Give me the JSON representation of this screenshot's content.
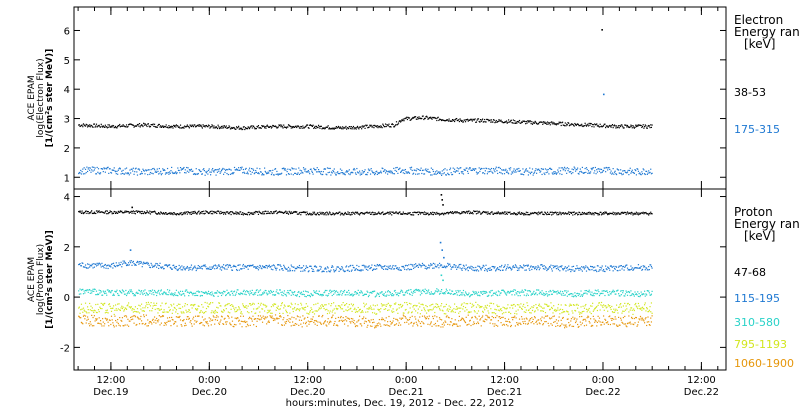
{
  "x_axis": {
    "title": "hours:minutes, Dec. 19, 2012 - Dec. 22, 2012",
    "ticks": [
      {
        "t": 12,
        "top": "12:00",
        "bottom": "Dec.19"
      },
      {
        "t": 24,
        "top": "0:00",
        "bottom": "Dec.20"
      },
      {
        "t": 36,
        "top": "12:00",
        "bottom": "Dec.20"
      },
      {
        "t": 48,
        "top": "0:00",
        "bottom": "Dec.21"
      },
      {
        "t": 60,
        "top": "12:00",
        "bottom": "Dec.21"
      },
      {
        "t": 72,
        "top": "0:00",
        "bottom": "Dec.22"
      },
      {
        "t": 84,
        "top": "12:00",
        "bottom": "Dec.22"
      }
    ],
    "unit": "hours since 2012-12-19 00:00",
    "xlim": [
      7.5,
      87
    ]
  },
  "chart_data": [
    {
      "type": "scatter",
      "ylabel": [
        "ACE EPAM",
        "log(Electron Flux)",
        "[1/(cm²s ster MeV)]"
      ],
      "ylim": [
        0.6,
        6.8
      ],
      "yticks": [
        1,
        2,
        3,
        4,
        5,
        6
      ],
      "legend_title": [
        "Electron",
        "Energy ran",
        "[keV]"
      ],
      "series": [
        {
          "name": "38-53",
          "color": "#000000",
          "points": [
            [
              8,
              2.8
            ],
            [
              12,
              2.75
            ],
            [
              16,
              2.8
            ],
            [
              20,
              2.75
            ],
            [
              24,
              2.75
            ],
            [
              28,
              2.7
            ],
            [
              32,
              2.75
            ],
            [
              36,
              2.75
            ],
            [
              40,
              2.7
            ],
            [
              44,
              2.75
            ],
            [
              46.5,
              2.8
            ],
            [
              47.5,
              3.0
            ],
            [
              50,
              3.05
            ],
            [
              52,
              3.0
            ],
            [
              55,
              2.95
            ],
            [
              58,
              2.95
            ],
            [
              62,
              2.9
            ],
            [
              66,
              2.85
            ],
            [
              70,
              2.8
            ],
            [
              74,
              2.75
            ],
            [
              78,
              2.75
            ]
          ],
          "outliers": [
            [
              71.8,
              6.05
            ]
          ]
        },
        {
          "name": "175-315",
          "color": "#1e78d2",
          "points": [
            [
              8,
              1.25
            ],
            [
              12,
              1.25
            ],
            [
              16,
              1.2
            ],
            [
              20,
              1.25
            ],
            [
              24,
              1.2
            ],
            [
              28,
              1.25
            ],
            [
              32,
              1.2
            ],
            [
              36,
              1.25
            ],
            [
              40,
              1.2
            ],
            [
              44,
              1.2
            ],
            [
              48,
              1.25
            ],
            [
              52,
              1.2
            ],
            [
              56,
              1.25
            ],
            [
              60,
              1.25
            ],
            [
              64,
              1.2
            ],
            [
              68,
              1.25
            ],
            [
              72,
              1.25
            ],
            [
              76,
              1.2
            ],
            [
              78,
              1.25
            ]
          ],
          "outliers": [
            [
              72,
              3.85
            ]
          ]
        }
      ]
    },
    {
      "type": "scatter",
      "ylabel": [
        "ACE EPAM",
        "log(Proton Flux)",
        "[1/(cm²s ster MeV)]"
      ],
      "ylim": [
        -2.9,
        4.3
      ],
      "yticks": [
        -2,
        0,
        2,
        4
      ],
      "legend_title": [
        "Proton",
        "Energy ran",
        "[keV]"
      ],
      "series": [
        {
          "name": "47-68",
          "color": "#000000",
          "points": [
            [
              8,
              3.4
            ],
            [
              12,
              3.4
            ],
            [
              16,
              3.4
            ],
            [
              20,
              3.35
            ],
            [
              24,
              3.4
            ],
            [
              28,
              3.35
            ],
            [
              32,
              3.4
            ],
            [
              36,
              3.35
            ],
            [
              40,
              3.35
            ],
            [
              44,
              3.35
            ],
            [
              48,
              3.35
            ],
            [
              52,
              3.35
            ],
            [
              56,
              3.4
            ],
            [
              60,
              3.35
            ],
            [
              64,
              3.35
            ],
            [
              68,
              3.35
            ],
            [
              72,
              3.35
            ],
            [
              76,
              3.35
            ],
            [
              78,
              3.35
            ]
          ],
          "outliers": [
            [
              52.2,
              4.1
            ],
            [
              52.3,
              3.9
            ],
            [
              52.4,
              3.7
            ],
            [
              14.5,
              3.6
            ]
          ]
        },
        {
          "name": "115-195",
          "color": "#1e78d2",
          "points": [
            [
              8,
              1.3
            ],
            [
              12,
              1.25
            ],
            [
              14,
              1.4
            ],
            [
              16,
              1.3
            ],
            [
              20,
              1.2
            ],
            [
              24,
              1.2
            ],
            [
              28,
              1.2
            ],
            [
              32,
              1.2
            ],
            [
              36,
              1.15
            ],
            [
              40,
              1.15
            ],
            [
              44,
              1.2
            ],
            [
              48,
              1.2
            ],
            [
              52,
              1.3
            ],
            [
              56,
              1.15
            ],
            [
              60,
              1.2
            ],
            [
              64,
              1.2
            ],
            [
              68,
              1.15
            ],
            [
              72,
              1.15
            ],
            [
              76,
              1.2
            ],
            [
              78,
              1.2
            ]
          ],
          "outliers": [
            [
              52.1,
              2.2
            ],
            [
              52.3,
              1.9
            ],
            [
              14.3,
              1.9
            ],
            [
              52.5,
              1.6
            ]
          ]
        },
        {
          "name": "310-580",
          "color": "#28d2c8",
          "points": [
            [
              8,
              0.25
            ],
            [
              12,
              0.2
            ],
            [
              16,
              0.2
            ],
            [
              20,
              0.2
            ],
            [
              24,
              0.15
            ],
            [
              28,
              0.2
            ],
            [
              32,
              0.2
            ],
            [
              36,
              0.15
            ],
            [
              40,
              0.2
            ],
            [
              44,
              0.15
            ],
            [
              48,
              0.2
            ],
            [
              52,
              0.25
            ],
            [
              56,
              0.15
            ],
            [
              60,
              0.2
            ],
            [
              64,
              0.2
            ],
            [
              68,
              0.15
            ],
            [
              72,
              0.2
            ],
            [
              76,
              0.15
            ],
            [
              78,
              0.2
            ]
          ],
          "outliers": [
            [
              52.2,
              0.9
            ],
            [
              52.4,
              0.7
            ]
          ]
        },
        {
          "name": "795-1193",
          "color": "#d2e61e",
          "points": [
            [
              8,
              -0.4
            ],
            [
              12,
              -0.45
            ],
            [
              16,
              -0.4
            ],
            [
              20,
              -0.45
            ],
            [
              24,
              -0.4
            ],
            [
              28,
              -0.45
            ],
            [
              32,
              -0.4
            ],
            [
              36,
              -0.45
            ],
            [
              40,
              -0.4
            ],
            [
              44,
              -0.45
            ],
            [
              48,
              -0.4
            ],
            [
              52,
              -0.45
            ],
            [
              56,
              -0.4
            ],
            [
              60,
              -0.45
            ],
            [
              64,
              -0.4
            ],
            [
              68,
              -0.45
            ],
            [
              72,
              -0.4
            ],
            [
              76,
              -0.45
            ],
            [
              78,
              -0.4
            ]
          ],
          "outliers": []
        },
        {
          "name": "1060-1900",
          "color": "#e6960a",
          "points": [
            [
              8,
              -0.9
            ],
            [
              12,
              -0.95
            ],
            [
              16,
              -0.9
            ],
            [
              20,
              -0.95
            ],
            [
              24,
              -0.9
            ],
            [
              28,
              -0.95
            ],
            [
              32,
              -0.9
            ],
            [
              36,
              -0.95
            ],
            [
              40,
              -0.9
            ],
            [
              44,
              -1.0
            ],
            [
              48,
              -0.9
            ],
            [
              52,
              -0.95
            ],
            [
              56,
              -0.9
            ],
            [
              60,
              -0.95
            ],
            [
              64,
              -0.9
            ],
            [
              68,
              -1.0
            ],
            [
              72,
              -0.9
            ],
            [
              76,
              -0.95
            ],
            [
              78,
              -0.9
            ]
          ],
          "outliers": []
        }
      ]
    }
  ]
}
